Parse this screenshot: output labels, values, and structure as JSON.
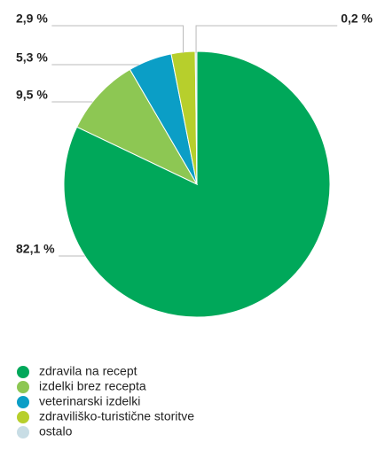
{
  "chart_data": {
    "type": "pie",
    "categories": [
      "zdravila na recept",
      "izdelki brez recepta",
      "veterinarski izdelki",
      "zdraviliško-turistične storitve",
      "ostalo"
    ],
    "values": [
      82.1,
      9.5,
      5.3,
      2.9,
      0.2
    ],
    "value_labels": [
      "82,1 %",
      "9,5 %",
      "5,3 %",
      "2,9 %",
      "0,2 %"
    ],
    "colors": [
      "#00a85a",
      "#8dc753",
      "#0b9ec6",
      "#b7cf2c",
      "#c8dde5"
    ],
    "legend": "bottom"
  }
}
